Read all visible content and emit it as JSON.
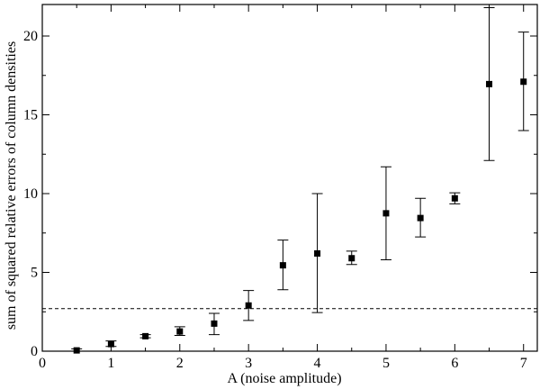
{
  "chart_data": {
    "type": "scatter",
    "title": "",
    "xlabel": "A (noise amplitude)",
    "ylabel": "sum of squared relative errors of column densities",
    "xlim": [
      0,
      7.2
    ],
    "ylim": [
      0,
      22
    ],
    "x_ticks": [
      0,
      1,
      2,
      3,
      4,
      5,
      6,
      7
    ],
    "y_ticks": [
      0,
      5,
      10,
      15,
      20
    ],
    "x_tick_labels": [
      "0",
      "1",
      "2",
      "3",
      "4",
      "5",
      "6",
      "7"
    ],
    "y_tick_labels": [
      "0",
      "5",
      "10",
      "15",
      "20"
    ],
    "grid": false,
    "legend": "none",
    "marker": "square",
    "marker_color": "#000000",
    "reference_line": {
      "y": 2.7,
      "style": "dashed",
      "color": "#000000"
    },
    "points": [
      {
        "x": 0.5,
        "y": 0.05,
        "err_low": 0.0,
        "err_high": 0.15
      },
      {
        "x": 1.0,
        "y": 0.45,
        "err_low": 0.3,
        "err_high": 0.65
      },
      {
        "x": 1.5,
        "y": 0.95,
        "err_low": 0.85,
        "err_high": 1.05
      },
      {
        "x": 2.0,
        "y": 1.25,
        "err_low": 1.0,
        "err_high": 1.55
      },
      {
        "x": 2.5,
        "y": 1.75,
        "err_low": 1.05,
        "err_high": 2.4
      },
      {
        "x": 3.0,
        "y": 2.9,
        "err_low": 1.95,
        "err_high": 3.85
      },
      {
        "x": 3.5,
        "y": 5.45,
        "err_low": 3.9,
        "err_high": 7.05
      },
      {
        "x": 4.0,
        "y": 6.2,
        "err_low": 2.45,
        "err_high": 10.0
      },
      {
        "x": 4.5,
        "y": 5.9,
        "err_low": 5.5,
        "err_high": 6.35
      },
      {
        "x": 5.0,
        "y": 8.75,
        "err_low": 5.8,
        "err_high": 11.7
      },
      {
        "x": 5.5,
        "y": 8.45,
        "err_low": 7.25,
        "err_high": 9.7
      },
      {
        "x": 6.0,
        "y": 9.7,
        "err_low": 9.35,
        "err_high": 10.05
      },
      {
        "x": 6.5,
        "y": 16.95,
        "err_low": 12.1,
        "err_high": 21.8
      },
      {
        "x": 7.0,
        "y": 17.1,
        "err_low": 14.0,
        "err_high": 20.25
      }
    ]
  }
}
